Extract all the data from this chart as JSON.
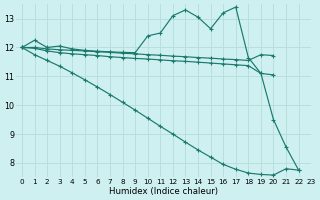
{
  "xlabel": "Humidex (Indice chaleur)",
  "background_color": "#cff0f0",
  "grid_color": "#b8dede",
  "line_color": "#1a7a6e",
  "xlim": [
    -0.5,
    23
  ],
  "ylim": [
    7.5,
    13.5
  ],
  "xticks": [
    0,
    1,
    2,
    3,
    4,
    5,
    6,
    7,
    8,
    9,
    10,
    11,
    12,
    13,
    14,
    15,
    16,
    17,
    18,
    19,
    20,
    21,
    22,
    23
  ],
  "yticks": [
    8,
    9,
    10,
    11,
    12,
    13
  ],
  "series": [
    {
      "x": [
        0,
        1,
        2,
        3,
        4,
        5,
        6,
        7,
        8,
        9,
        10,
        11,
        12,
        13,
        14,
        15,
        16,
        17,
        18,
        19,
        20,
        21,
        22
      ],
      "y": [
        12.0,
        12.25,
        12.0,
        12.05,
        11.95,
        11.9,
        11.87,
        11.85,
        11.83,
        11.82,
        12.4,
        12.5,
        13.1,
        13.3,
        13.05,
        12.65,
        13.2,
        13.4,
        11.65,
        11.1,
        9.5,
        8.55,
        7.75
      ],
      "marker": true
    },
    {
      "x": [
        0,
        1,
        2,
        3,
        4,
        5,
        6,
        7,
        8,
        9,
        10,
        11,
        12,
        13,
        14,
        15,
        16,
        17,
        18,
        19,
        20
      ],
      "y": [
        12.0,
        12.0,
        11.95,
        11.92,
        11.9,
        11.88,
        11.85,
        11.83,
        11.8,
        11.78,
        11.75,
        11.73,
        11.7,
        11.68,
        11.65,
        11.63,
        11.6,
        11.58,
        11.55,
        11.75,
        11.72
      ],
      "marker": true
    },
    {
      "x": [
        0,
        1,
        2,
        3,
        4,
        5,
        6,
        7,
        8,
        9,
        10,
        11,
        12,
        13,
        14,
        15,
        16,
        17,
        18,
        19,
        20
      ],
      "y": [
        12.0,
        11.97,
        11.88,
        11.82,
        11.78,
        11.75,
        11.72,
        11.68,
        11.65,
        11.62,
        11.6,
        11.57,
        11.54,
        11.52,
        11.49,
        11.46,
        11.43,
        11.4,
        11.37,
        11.1,
        11.05
      ],
      "marker": true
    },
    {
      "x": [
        0,
        1,
        2,
        3,
        4,
        5,
        6,
        7,
        8,
        9,
        10,
        11,
        12,
        13,
        14,
        15,
        16,
        17,
        18,
        19,
        20,
        21,
        22
      ],
      "y": [
        12.0,
        11.75,
        11.55,
        11.35,
        11.12,
        10.88,
        10.63,
        10.37,
        10.1,
        9.83,
        9.55,
        9.27,
        9.0,
        8.72,
        8.45,
        8.2,
        7.95,
        7.78,
        7.65,
        7.6,
        7.58,
        7.8,
        7.75
      ],
      "marker": true
    }
  ]
}
